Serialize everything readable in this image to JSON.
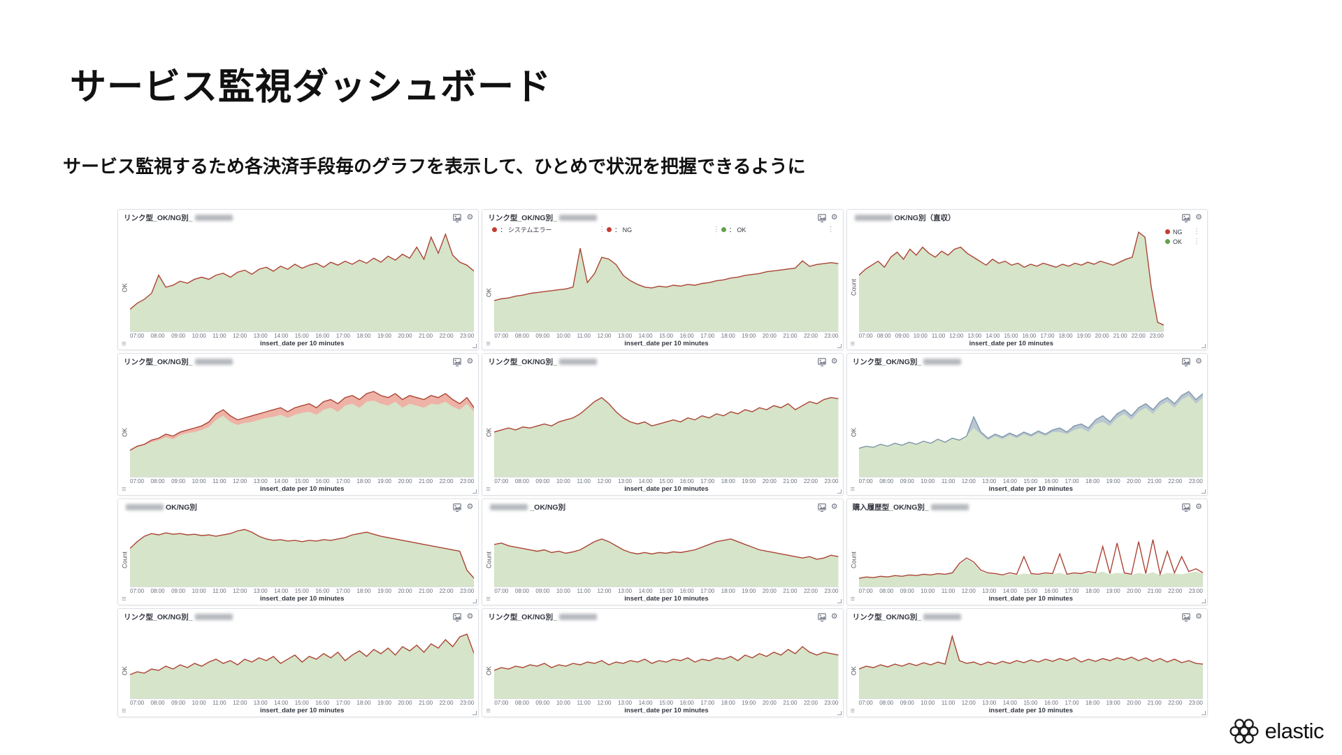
{
  "page": {
    "title": "サービス監視ダッシュボード",
    "subtitle": "サービス監視するため各決済手段毎のグラフを表示して、ひとめで状況を把握できるように",
    "brand": "elastic"
  },
  "axis": {
    "x_title": "insert_date per 10 minutes",
    "x_ticks": [
      "07:00",
      "08:00",
      "09:00",
      "10:00",
      "11:00",
      "12:00",
      "13:00",
      "14:00",
      "15:00",
      "16:00",
      "17:00",
      "18:00",
      "19:00",
      "20:00",
      "21:00",
      "22:00",
      "23:00"
    ]
  },
  "icons": {
    "gear": "⚙",
    "list": "≡",
    "kebab": "⋮"
  },
  "colors": {
    "line_red": "#ab4434",
    "line_blue": "#7e96a8",
    "fill_green": "#d6e4c9",
    "band_pink": "#eeb2a6",
    "band_blue": "#b9c7d2",
    "legend_red": "#c43d31",
    "legend_green": "#62a04e"
  },
  "chart_data": [
    {
      "type": "area",
      "title_before": "リンク型_OK/NG別_",
      "redacted": true,
      "title_after": "",
      "y_label": "OK",
      "line_color": "#ab4434",
      "fill_color": "#d6e4c9",
      "values": [
        18,
        24,
        28,
        34,
        52,
        40,
        42,
        46,
        44,
        48,
        50,
        48,
        52,
        54,
        50,
        55,
        57,
        53,
        58,
        60,
        56,
        61,
        58,
        63,
        59,
        62,
        64,
        60,
        65,
        62,
        66,
        63,
        67,
        64,
        69,
        65,
        71,
        67,
        73,
        69,
        80,
        68,
        90,
        74,
        93,
        72,
        65,
        62,
        56
      ]
    },
    {
      "type": "area",
      "title_before": "リンク型_OK/NG別_",
      "redacted": true,
      "title_after": "",
      "y_label": "OK",
      "line_color": "#ab4434",
      "fill_color": "#d6e4c9",
      "legend_top": [
        {
          "label": "： システムエラー",
          "color": "#c43d31"
        },
        {
          "label": "： NG",
          "color": "#c43d31"
        },
        {
          "label": "： OK",
          "color": "#62a04e"
        }
      ],
      "values": [
        30,
        32,
        33,
        35,
        36,
        38,
        39,
        40,
        41,
        42,
        43,
        45,
        88,
        50,
        60,
        78,
        76,
        70,
        58,
        52,
        48,
        45,
        44,
        46,
        45,
        47,
        46,
        48,
        47,
        49,
        50,
        52,
        53,
        55,
        56,
        58,
        59,
        60,
        62,
        63,
        64,
        65,
        66,
        74,
        68,
        70,
        71,
        72,
        71
      ]
    },
    {
      "type": "area",
      "title_before": "",
      "redacted": true,
      "title_after": "OK/NG別（直収）",
      "y_label": "Count",
      "line_color": "#ab4434",
      "fill_color": "#d6e4c9",
      "legend_right": [
        {
          "label": "NG",
          "color": "#c43d31"
        },
        {
          "label": "OK",
          "color": "#62a04e"
        }
      ],
      "values": [
        52,
        58,
        62,
        66,
        60,
        70,
        75,
        68,
        78,
        72,
        80,
        74,
        70,
        76,
        72,
        78,
        80,
        74,
        70,
        66,
        62,
        68,
        64,
        66,
        62,
        64,
        60,
        63,
        61,
        64,
        62,
        60,
        63,
        61,
        64,
        62,
        65,
        63,
        66,
        64,
        62,
        65,
        68,
        70,
        95,
        90,
        40,
        5,
        2
      ]
    },
    {
      "type": "area",
      "title_before": "リンク型_OK/NG別_",
      "redacted": true,
      "title_after": "",
      "y_label": "OK",
      "line_color": "#ab4434",
      "fill_color": "#d6e4c9",
      "band_color": "#eeb2a6",
      "values": [
        22,
        26,
        28,
        32,
        34,
        38,
        36,
        40,
        42,
        44,
        46,
        50,
        58,
        62,
        56,
        52,
        54,
        56,
        58,
        60,
        62,
        64,
        60,
        64,
        66,
        68,
        64,
        70,
        72,
        68,
        74,
        76,
        72,
        78,
        80,
        76,
        74,
        78,
        72,
        76,
        74,
        72,
        76,
        74,
        78,
        72,
        68,
        74,
        64
      ],
      "fill_values": [
        22,
        25,
        27,
        30,
        32,
        35,
        33,
        37,
        39,
        40,
        42,
        45,
        52,
        56,
        50,
        47,
        49,
        50,
        52,
        54,
        55,
        57,
        54,
        57,
        59,
        60,
        57,
        62,
        64,
        60,
        66,
        68,
        64,
        70,
        71,
        68,
        66,
        70,
        64,
        68,
        66,
        64,
        68,
        67,
        70,
        65,
        62,
        68,
        60
      ]
    },
    {
      "type": "area",
      "title_before": "リンク型_OK/NG別_",
      "redacted": true,
      "title_after": "",
      "y_label": "OK",
      "line_color": "#ab4434",
      "fill_color": "#d6e4c9",
      "values": [
        40,
        42,
        44,
        42,
        45,
        44,
        46,
        48,
        46,
        50,
        52,
        54,
        58,
        64,
        70,
        74,
        68,
        60,
        54,
        50,
        48,
        50,
        46,
        48,
        50,
        52,
        50,
        54,
        52,
        56,
        54,
        58,
        56,
        60,
        58,
        62,
        60,
        64,
        62,
        66,
        64,
        68,
        62,
        66,
        70,
        68,
        72,
        74,
        73
      ]
    },
    {
      "type": "area",
      "title_before": "リンク型_OK/NG別_",
      "redacted": true,
      "title_after": "",
      "y_label": "OK",
      "line_color": "#7e96a8",
      "fill_color": "#d6e4c9",
      "band_color": "#b9c7d2",
      "values": [
        24,
        26,
        25,
        28,
        26,
        29,
        27,
        30,
        28,
        31,
        29,
        33,
        30,
        34,
        32,
        36,
        55,
        40,
        34,
        38,
        35,
        39,
        36,
        40,
        37,
        41,
        38,
        42,
        44,
        40,
        46,
        48,
        44,
        52,
        56,
        50,
        58,
        62,
        56,
        64,
        68,
        62,
        70,
        74,
        68,
        76,
        80,
        72,
        78
      ],
      "fill_values": [
        24,
        26,
        25,
        28,
        26,
        29,
        27,
        30,
        28,
        31,
        29,
        33,
        30,
        34,
        32,
        36,
        44,
        38,
        32,
        36,
        33,
        37,
        34,
        38,
        35,
        39,
        36,
        40,
        40,
        38,
        42,
        44,
        40,
        48,
        50,
        46,
        54,
        58,
        52,
        60,
        64,
        58,
        66,
        70,
        64,
        72,
        76,
        68,
        74
      ]
    },
    {
      "type": "area",
      "title_before": "",
      "redacted": true,
      "title_after": "OK/NG別",
      "y_label": "Count",
      "line_color": "#ab4434",
      "fill_color": "#d6e4c9",
      "values": [
        52,
        62,
        70,
        74,
        72,
        75,
        73,
        74,
        72,
        73,
        71,
        72,
        70,
        72,
        74,
        78,
        80,
        76,
        70,
        66,
        64,
        65,
        63,
        64,
        62,
        64,
        63,
        65,
        64,
        66,
        68,
        72,
        74,
        76,
        73,
        70,
        68,
        66,
        64,
        62,
        60,
        58,
        56,
        54,
        52,
        50,
        48,
        20,
        8
      ]
    },
    {
      "type": "area",
      "title_before": "",
      "redacted": true,
      "title_after": "_OK/NG別",
      "y_label": "Count",
      "line_color": "#ab4434",
      "fill_color": "#d6e4c9",
      "values": [
        58,
        60,
        56,
        54,
        52,
        50,
        48,
        50,
        46,
        48,
        45,
        47,
        50,
        56,
        62,
        66,
        62,
        56,
        50,
        46,
        44,
        46,
        44,
        46,
        45,
        47,
        46,
        48,
        50,
        54,
        58,
        62,
        64,
        66,
        62,
        58,
        54,
        50,
        48,
        46,
        44,
        42,
        40,
        38,
        40,
        36,
        38,
        42,
        40
      ]
    },
    {
      "type": "area",
      "title_before": "購入履歴型_OK/NG別_",
      "redacted": true,
      "title_after": "",
      "y_label": "Count",
      "line_color": "#ab4434",
      "fill_color": "#d6e4c9",
      "band_color": "transparent",
      "values": [
        8,
        10,
        9,
        11,
        10,
        12,
        11,
        13,
        12,
        14,
        13,
        15,
        14,
        16,
        30,
        38,
        32,
        20,
        16,
        15,
        13,
        16,
        14,
        40,
        15,
        14,
        16,
        15,
        44,
        14,
        16,
        15,
        18,
        16,
        55,
        15,
        60,
        16,
        14,
        62,
        15,
        65,
        14,
        48,
        16,
        40,
        18,
        22,
        16
      ],
      "fill_values": [
        8,
        10,
        9,
        11,
        10,
        12,
        11,
        13,
        12,
        14,
        13,
        15,
        14,
        16,
        28,
        36,
        30,
        18,
        15,
        14,
        12,
        14,
        13,
        15,
        14,
        13,
        15,
        14,
        16,
        13,
        15,
        14,
        16,
        15,
        18,
        14,
        16,
        15,
        13,
        16,
        14,
        17,
        13,
        16,
        15,
        14,
        16,
        18,
        15
      ]
    },
    {
      "type": "area",
      "title_before": "リンク型_OK/NG別_",
      "redacted": true,
      "title_after": "",
      "y_label": "OK",
      "line_color": "#ab4434",
      "fill_color": "#d6e4c9",
      "values": [
        30,
        34,
        32,
        38,
        36,
        42,
        38,
        44,
        40,
        46,
        42,
        48,
        52,
        46,
        50,
        44,
        52,
        48,
        54,
        50,
        56,
        46,
        52,
        58,
        48,
        56,
        52,
        60,
        54,
        62,
        50,
        58,
        64,
        56,
        66,
        60,
        68,
        58,
        70,
        64,
        72,
        62,
        74,
        68,
        80,
        70,
        84,
        88,
        60
      ]
    },
    {
      "type": "area",
      "title_before": "リンク型_OK/NG別_",
      "redacted": true,
      "title_after": "",
      "y_label": "OK",
      "line_color": "#ab4434",
      "fill_color": "#d6e4c9",
      "values": [
        36,
        40,
        38,
        42,
        40,
        44,
        42,
        46,
        40,
        44,
        42,
        46,
        44,
        48,
        46,
        50,
        44,
        48,
        46,
        50,
        48,
        52,
        46,
        50,
        48,
        52,
        50,
        54,
        48,
        52,
        50,
        54,
        52,
        56,
        50,
        58,
        54,
        60,
        56,
        62,
        58,
        66,
        60,
        70,
        62,
        58,
        62,
        60,
        58
      ]
    },
    {
      "type": "area",
      "title_before": "リンク型_OK/NG別_",
      "redacted": true,
      "title_after": "",
      "y_label": "OK",
      "line_color": "#ab4434",
      "fill_color": "#d6e4c9",
      "values": [
        38,
        42,
        40,
        44,
        41,
        45,
        42,
        46,
        43,
        47,
        44,
        48,
        45,
        85,
        50,
        46,
        48,
        44,
        48,
        45,
        49,
        46,
        50,
        47,
        51,
        48,
        52,
        49,
        53,
        50,
        54,
        48,
        52,
        49,
        53,
        50,
        54,
        51,
        55,
        50,
        54,
        49,
        53,
        48,
        52,
        47,
        50,
        46,
        45
      ]
    }
  ]
}
